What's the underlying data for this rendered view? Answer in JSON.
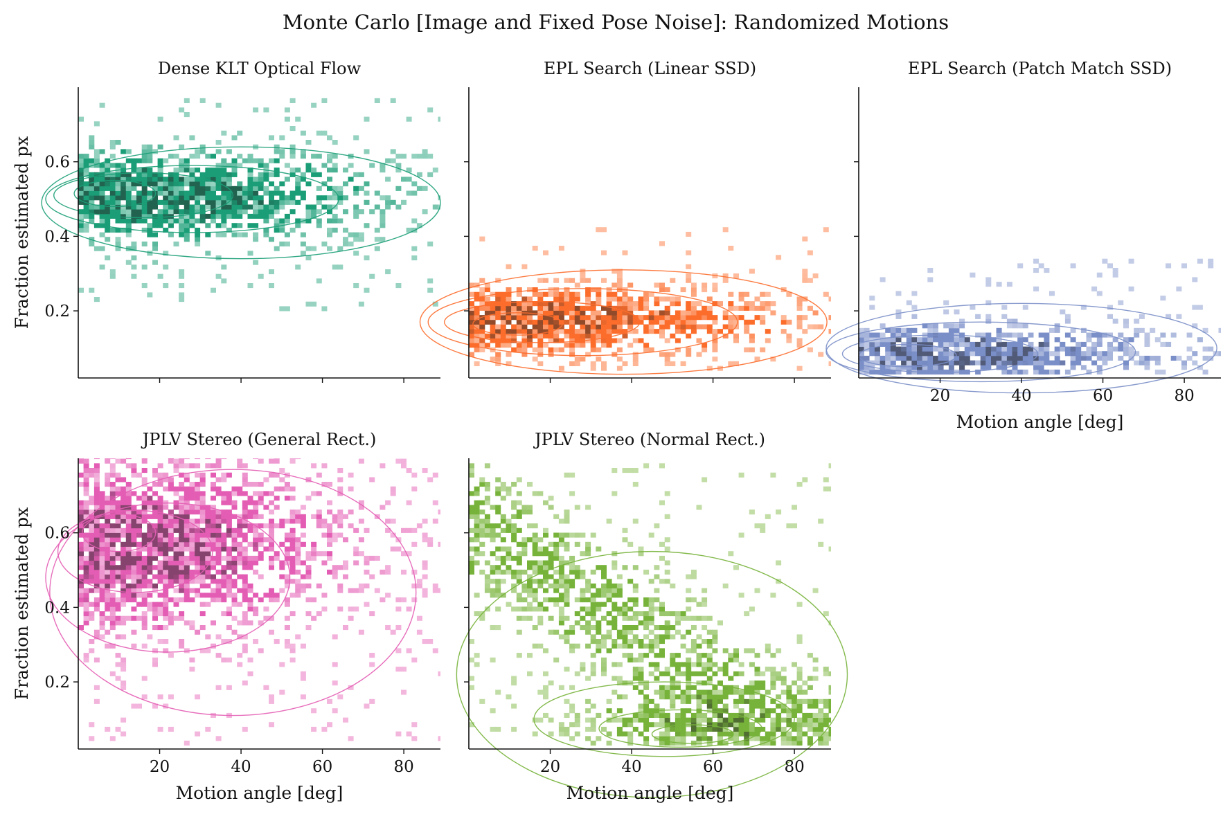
{
  "figure": {
    "title": "Monte Carlo [Image and Fixed Pose Noise]: Randomized Motions"
  },
  "chart_data": [
    {
      "type": "heatmap",
      "title": "Dense KLT Optical Flow",
      "xlabel": "",
      "ylabel": "Fraction estimated px",
      "xlim": [
        0,
        89
      ],
      "ylim": [
        0.02,
        0.8
      ],
      "xticks": [
        20,
        40,
        60,
        80
      ],
      "yticks": [
        0.2,
        0.4,
        0.6
      ],
      "xtick_labels": [
        "",
        "",
        "",
        ""
      ],
      "ytick_labels": [
        "0.2",
        "0.4",
        "0.6"
      ],
      "color": "#1b9e77",
      "density": {
        "shape": "blob",
        "center": [
          12,
          0.5
        ],
        "spread": [
          34,
          0.08
        ],
        "extent": [
          0,
          89,
          0.2,
          0.77
        ]
      },
      "kde_contours": [
        {
          "cx": 40,
          "cy": 0.49,
          "rx": 49,
          "ry": 0.15
        },
        {
          "cx": 28,
          "cy": 0.5,
          "rx": 36,
          "ry": 0.09
        },
        {
          "cx": 16,
          "cy": 0.51,
          "rx": 22,
          "ry": 0.06
        },
        {
          "cx": 9,
          "cy": 0.515,
          "rx": 10,
          "ry": 0.035
        }
      ]
    },
    {
      "type": "heatmap",
      "title": "EPL Search (Linear SSD)",
      "xlabel": "",
      "ylabel": "",
      "xlim": [
        0,
        89
      ],
      "ylim": [
        0.02,
        0.8
      ],
      "xticks": [
        20,
        40,
        60,
        80
      ],
      "yticks": [
        0.2,
        0.4,
        0.6
      ],
      "xtick_labels": [
        "",
        "",
        "",
        ""
      ],
      "ytick_labels": [
        "",
        "",
        ""
      ],
      "color": "#fc6d2c",
      "density": {
        "shape": "blob",
        "center": [
          14,
          0.17
        ],
        "spread": [
          36,
          0.06
        ],
        "extent": [
          0,
          89,
          0.04,
          0.42
        ]
      },
      "kde_contours": [
        {
          "cx": 38,
          "cy": 0.17,
          "rx": 50,
          "ry": 0.14
        },
        {
          "cx": 28,
          "cy": 0.17,
          "rx": 38,
          "ry": 0.09
        },
        {
          "cx": 18,
          "cy": 0.17,
          "rx": 24,
          "ry": 0.055
        },
        {
          "cx": 12,
          "cy": 0.165,
          "rx": 11,
          "ry": 0.03
        }
      ]
    },
    {
      "type": "heatmap",
      "title": "EPL Search (Patch Match SSD)",
      "xlabel": "Motion angle [deg]",
      "ylabel": "",
      "xlim": [
        0,
        89
      ],
      "ylim": [
        0.02,
        0.8
      ],
      "xticks": [
        20,
        40,
        60,
        80
      ],
      "yticks": [
        0.2,
        0.4,
        0.6
      ],
      "xtick_labels": [
        "20",
        "40",
        "60",
        "80"
      ],
      "ytick_labels": [
        "",
        "",
        ""
      ],
      "color": "#7a8ec8",
      "density": {
        "shape": "blob",
        "center": [
          14,
          0.08
        ],
        "spread": [
          36,
          0.05
        ],
        "extent": [
          0,
          89,
          0.03,
          0.33
        ]
      },
      "kde_contours": [
        {
          "cx": 40,
          "cy": 0.1,
          "rx": 48,
          "ry": 0.12
        },
        {
          "cx": 30,
          "cy": 0.09,
          "rx": 38,
          "ry": 0.08
        },
        {
          "cx": 20,
          "cy": 0.085,
          "rx": 24,
          "ry": 0.05
        },
        {
          "cx": 12,
          "cy": 0.08,
          "rx": 12,
          "ry": 0.03
        }
      ]
    },
    {
      "type": "heatmap",
      "title": "JPLV Stereo (General Rect.)",
      "xlabel": "Motion angle [deg]",
      "ylabel": "Fraction estimated px",
      "xlim": [
        0,
        89
      ],
      "ylim": [
        0.02,
        0.8
      ],
      "xticks": [
        20,
        40,
        60,
        80
      ],
      "yticks": [
        0.2,
        0.4,
        0.6
      ],
      "xtick_labels": [
        "20",
        "40",
        "60",
        "80"
      ],
      "ytick_labels": [
        "0.2",
        "0.4",
        "0.6"
      ],
      "color": "#e45db4",
      "density": {
        "shape": "blob",
        "center": [
          10,
          0.56
        ],
        "spread": [
          30,
          0.15
        ],
        "extent": [
          0,
          89,
          0.03,
          0.8
        ]
      },
      "kde_contours": [
        {
          "cx": 38,
          "cy": 0.44,
          "rx": 45,
          "ry": 0.33
        },
        {
          "cx": 22,
          "cy": 0.48,
          "rx": 30,
          "ry": 0.2
        },
        {
          "cx": 14,
          "cy": 0.55,
          "rx": 19,
          "ry": 0.11
        },
        {
          "cx": 10,
          "cy": 0.6,
          "rx": 9,
          "ry": 0.05
        }
      ]
    },
    {
      "type": "heatmap",
      "title": "JPLV Stereo (Normal Rect.)",
      "xlabel": "Motion angle [deg]",
      "ylabel": "",
      "xlim": [
        0,
        89
      ],
      "ylim": [
        0.02,
        0.8
      ],
      "xticks": [
        20,
        40,
        60,
        80
      ],
      "yticks": [
        0.2,
        0.4,
        0.6
      ],
      "xtick_labels": [
        "20",
        "40",
        "60",
        "80"
      ],
      "ytick_labels": [
        "",
        "",
        ""
      ],
      "color": "#77b33a",
      "density": {
        "shape": "diagonal",
        "center": [
          50,
          0.07
        ],
        "spread": [
          22,
          0.08
        ],
        "extent": [
          0,
          89,
          0.03,
          0.78
        ]
      },
      "kde_contours": [
        {
          "cx": 45,
          "cy": 0.22,
          "rx": 48,
          "ry": 0.33
        },
        {
          "cx": 48,
          "cy": 0.1,
          "rx": 32,
          "ry": 0.1
        },
        {
          "cx": 52,
          "cy": 0.075,
          "rx": 20,
          "ry": 0.05
        },
        {
          "cx": 55,
          "cy": 0.06,
          "rx": 10,
          "ry": 0.025
        }
      ]
    }
  ]
}
